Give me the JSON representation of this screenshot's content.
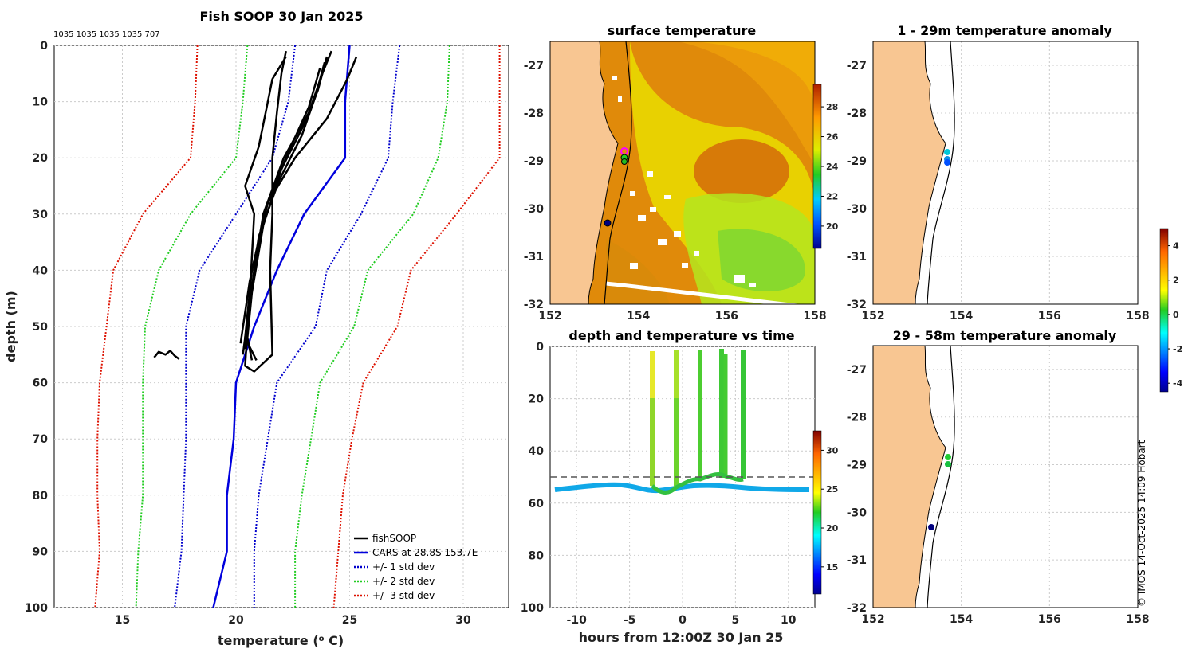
{
  "chart_data": [
    {
      "type": "line",
      "title": "Fish SOOP 30 Jan 2025",
      "subtitle": "1035 1035 1035 1035 707",
      "xlabel": "temperature (o C)",
      "xlabel_main": "temperature (",
      "xlabel_sup": "o",
      "xlabel_end": " C)",
      "ylabel": "depth (m)",
      "xlim": [
        12,
        32
      ],
      "ylim": [
        100,
        0
      ],
      "xticks": [
        "15",
        "20",
        "25",
        "30"
      ],
      "yticks": [
        "0",
        "10",
        "20",
        "30",
        "40",
        "50",
        "60",
        "70",
        "80",
        "90",
        "100"
      ],
      "legend": [
        "fishSOOP",
        "CARS at 28.8S 153.7E",
        "+/- 1 std dev",
        "+/- 2 std dev",
        "+/- 3 std dev"
      ],
      "colors": {
        "fishsoop": "#000000",
        "cars": "#0000dd",
        "std1": "#0000cc",
        "std2": "#22cc22",
        "std3": "#dd1100"
      },
      "depth_levels": [
        0,
        10,
        20,
        30,
        40,
        50,
        60,
        70,
        80,
        90,
        100
      ],
      "cars_mean": [
        25.0,
        24.8,
        24.8,
        23.0,
        21.8,
        20.8,
        20.0,
        19.9,
        19.6,
        19.6,
        19.0
      ],
      "std1_minus": [
        22.6,
        22.3,
        21.6,
        20.0,
        18.4,
        17.8,
        17.8,
        17.8,
        17.7,
        17.6,
        17.3
      ],
      "std1_plus": [
        27.2,
        26.9,
        26.7,
        25.5,
        24.0,
        23.5,
        21.8,
        21.4,
        21.0,
        20.8,
        20.8
      ],
      "std2_minus": [
        20.5,
        20.3,
        20.0,
        18.0,
        16.6,
        16.0,
        15.9,
        15.9,
        15.9,
        15.7,
        15.6
      ],
      "std2_plus": [
        29.4,
        29.3,
        28.9,
        27.8,
        25.8,
        25.2,
        23.7,
        23.3,
        22.9,
        22.6,
        22.6
      ],
      "std3_minus": [
        18.3,
        18.2,
        18.0,
        15.9,
        14.6,
        14.3,
        14.0,
        13.9,
        13.9,
        14.0,
        13.8
      ],
      "std3_plus": [
        31.6,
        31.6,
        31.6,
        29.7,
        27.7,
        27.1,
        25.6,
        25.1,
        24.7,
        24.5,
        24.3
      ],
      "fishsoop_profiles": [
        [
          [
            22.2,
            1
          ],
          [
            22.0,
            5
          ],
          [
            21.8,
            12
          ],
          [
            21.6,
            20
          ],
          [
            21.6,
            30
          ],
          [
            21.5,
            40
          ],
          [
            21.6,
            55
          ],
          [
            20.8,
            58
          ],
          [
            20.4,
            57
          ],
          [
            20.6,
            45
          ],
          [
            20.8,
            30
          ],
          [
            20.4,
            25
          ],
          [
            21.0,
            18
          ],
          [
            21.3,
            12
          ],
          [
            21.6,
            6
          ],
          [
            22.2,
            2
          ]
        ],
        [
          [
            24.2,
            1
          ],
          [
            23.8,
            5
          ],
          [
            23.2,
            12
          ],
          [
            22.1,
            20
          ],
          [
            21.2,
            30
          ],
          [
            20.8,
            40
          ],
          [
            20.5,
            50
          ],
          [
            20.4,
            54
          ]
        ],
        [
          [
            24.0,
            2
          ],
          [
            23.6,
            8
          ],
          [
            23.0,
            14
          ],
          [
            22.0,
            22
          ],
          [
            21.2,
            32
          ],
          [
            20.7,
            44
          ],
          [
            20.5,
            52
          ],
          [
            20.7,
            56
          ]
        ],
        [
          [
            23.9,
            3
          ],
          [
            23.5,
            9
          ],
          [
            22.9,
            16
          ],
          [
            21.9,
            24
          ],
          [
            21.0,
            34
          ],
          [
            20.6,
            46
          ],
          [
            20.3,
            55
          ]
        ],
        [
          [
            25.3,
            2
          ],
          [
            24.9,
            6
          ],
          [
            24.0,
            13
          ],
          [
            22.6,
            20
          ],
          [
            21.4,
            28
          ],
          [
            20.7,
            40
          ],
          [
            20.4,
            52
          ],
          [
            20.9,
            56
          ]
        ],
        [
          [
            23.7,
            4
          ],
          [
            23.2,
            11
          ],
          [
            22.3,
            19
          ],
          [
            21.3,
            29
          ],
          [
            20.6,
            42
          ],
          [
            20.2,
            53
          ]
        ],
        [
          [
            16.4,
            55.5
          ],
          [
            16.6,
            54.5
          ],
          [
            16.9,
            55.0
          ],
          [
            17.1,
            54.3
          ],
          [
            17.3,
            55.2
          ],
          [
            17.5,
            55.8
          ]
        ]
      ]
    },
    {
      "type": "heatmap",
      "title": "surface temperature",
      "xlim": [
        152,
        158
      ],
      "ylim": [
        -32,
        -26.5
      ],
      "xticks": [
        "152",
        "154",
        "156",
        "158"
      ],
      "yticks": [
        "-27",
        "-28",
        "-29",
        "-30",
        "-31",
        "-32"
      ],
      "colorbar_ticks": [
        "28",
        "26",
        "24",
        "22",
        "20"
      ],
      "colorbar_range": [
        18.5,
        29.5
      ]
    },
    {
      "type": "scatter",
      "title": "depth and temperature vs time",
      "xlabel": "hours from 12:00Z 30 Jan 25",
      "xlim": [
        -12.5,
        12.5
      ],
      "ylim": [
        100,
        0
      ],
      "xticks": [
        "-10",
        "-5",
        "0",
        "5",
        "10"
      ],
      "yticks": [
        "0",
        "20",
        "40",
        "60",
        "80",
        "100"
      ],
      "reference_depth": 50,
      "colorbar_ticks": [
        "30",
        "25",
        "20",
        "15"
      ],
      "colorbar_range": [
        11.5,
        32.5
      ]
    },
    {
      "type": "scatter",
      "title": "1 - 29m temperature anomaly",
      "xlim": [
        152,
        158
      ],
      "ylim": [
        -32,
        -26.5
      ],
      "xticks": [
        "152",
        "154",
        "156",
        "158"
      ],
      "yticks": [
        "-27",
        "-28",
        "-29",
        "-30",
        "-31",
        "-32"
      ]
    },
    {
      "type": "scatter",
      "title": "29 - 58m temperature anomaly",
      "xlim": [
        152,
        158
      ],
      "ylim": [
        -32,
        -26.5
      ],
      "xticks": [
        "152",
        "154",
        "156",
        "158"
      ],
      "yticks": [
        "-27",
        "-28",
        "-29",
        "-30",
        "-31",
        "-32"
      ],
      "colorbar_ticks": [
        "4",
        "2",
        "0",
        "-2",
        "-4"
      ],
      "colorbar_range": [
        -4.5,
        5.0
      ]
    }
  ],
  "credit": "© IMOS 14-Oct-2025 14:09 Hobart"
}
